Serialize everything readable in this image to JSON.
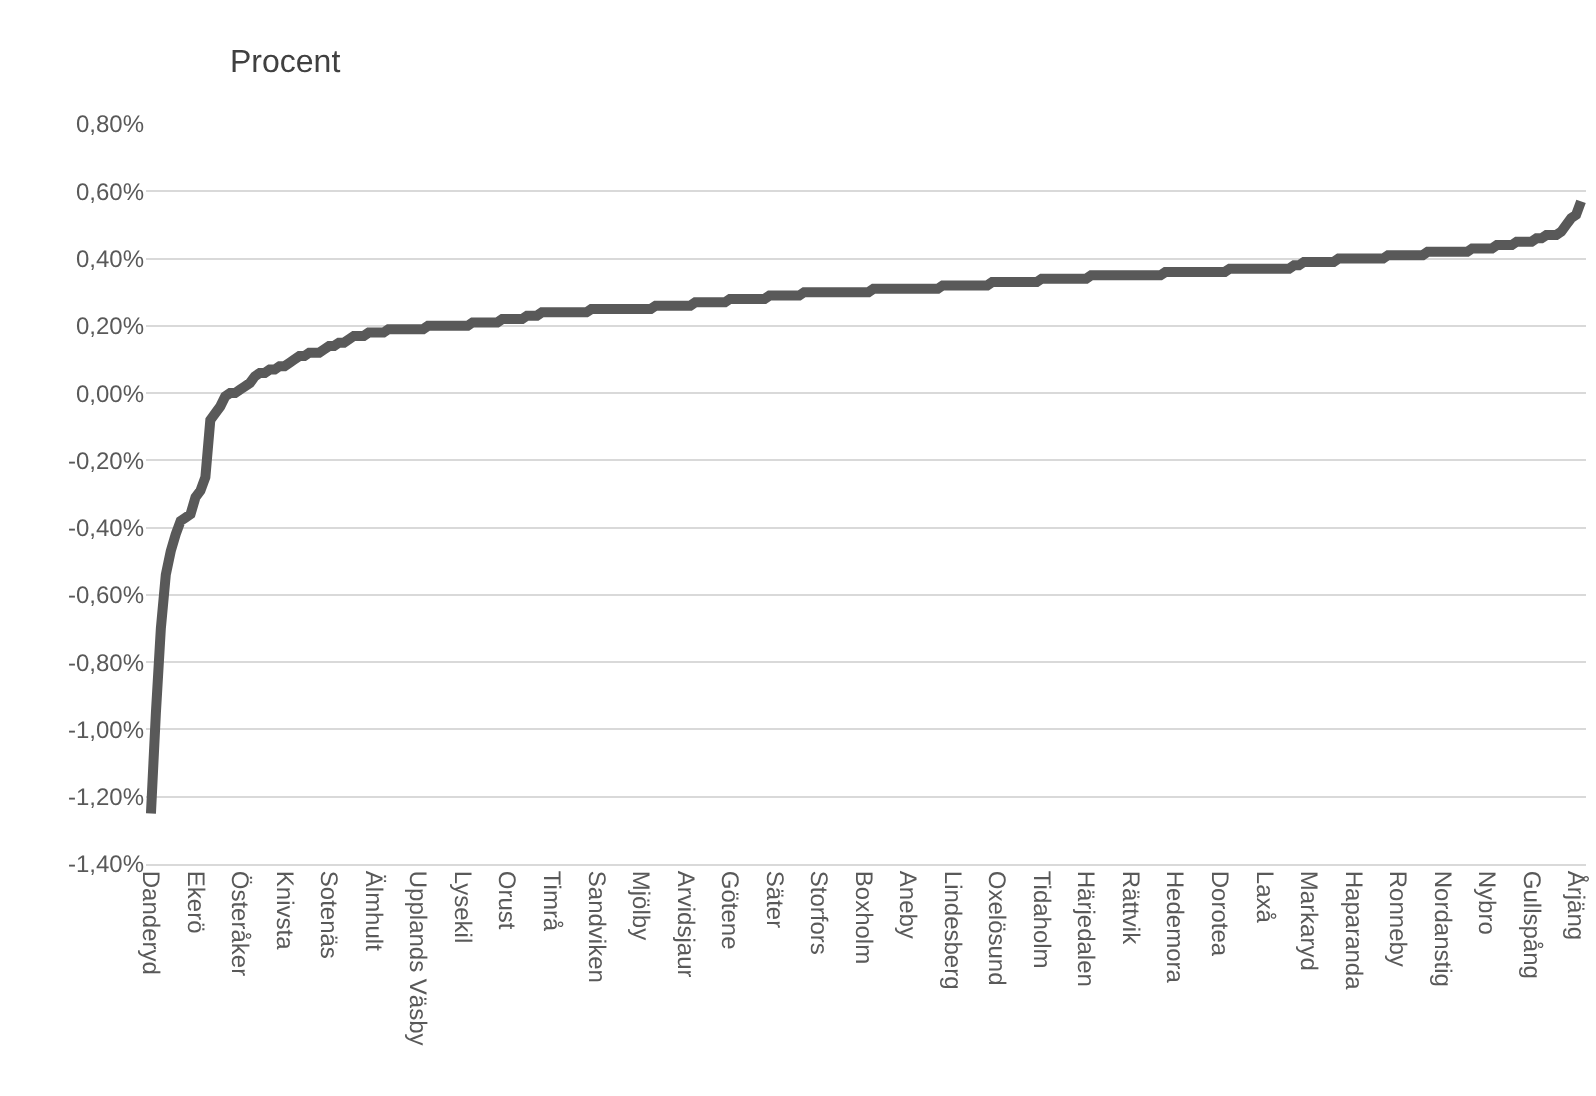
{
  "chart_data": {
    "type": "line",
    "ylabel": "Procent",
    "categories": [
      "Danderyd",
      null,
      null,
      null,
      null,
      null,
      null,
      null,
      null,
      "Ekerö",
      null,
      null,
      null,
      null,
      null,
      null,
      null,
      null,
      "Österåker",
      null,
      null,
      null,
      null,
      null,
      null,
      null,
      null,
      "Knivsta",
      null,
      null,
      null,
      null,
      null,
      null,
      null,
      null,
      "Sotenäs",
      null,
      null,
      null,
      null,
      null,
      null,
      null,
      null,
      "Älmhult",
      null,
      null,
      null,
      null,
      null,
      null,
      null,
      null,
      "Upplands Väsby",
      null,
      null,
      null,
      null,
      null,
      null,
      null,
      null,
      "Lysekil",
      null,
      null,
      null,
      null,
      null,
      null,
      null,
      null,
      "Orust",
      null,
      null,
      null,
      null,
      null,
      null,
      null,
      null,
      "Timrå",
      null,
      null,
      null,
      null,
      null,
      null,
      null,
      null,
      "Sandviken",
      null,
      null,
      null,
      null,
      null,
      null,
      null,
      null,
      "Mjölby",
      null,
      null,
      null,
      null,
      null,
      null,
      null,
      null,
      "Arvidsjaur",
      null,
      null,
      null,
      null,
      null,
      null,
      null,
      null,
      "Götene",
      null,
      null,
      null,
      null,
      null,
      null,
      null,
      null,
      "Säter",
      null,
      null,
      null,
      null,
      null,
      null,
      null,
      null,
      "Storfors",
      null,
      null,
      null,
      null,
      null,
      null,
      null,
      null,
      "Boxholm",
      null,
      null,
      null,
      null,
      null,
      null,
      null,
      null,
      "Aneby",
      null,
      null,
      null,
      null,
      null,
      null,
      null,
      null,
      "Lindesberg",
      null,
      null,
      null,
      null,
      null,
      null,
      null,
      null,
      "Oxelösund",
      null,
      null,
      null,
      null,
      null,
      null,
      null,
      null,
      "Tidaholm",
      null,
      null,
      null,
      null,
      null,
      null,
      null,
      null,
      "Härjedalen",
      null,
      null,
      null,
      null,
      null,
      null,
      null,
      null,
      "Rättvik",
      null,
      null,
      null,
      null,
      null,
      null,
      null,
      null,
      "Hedemora",
      null,
      null,
      null,
      null,
      null,
      null,
      null,
      null,
      "Dorotea",
      null,
      null,
      null,
      null,
      null,
      null,
      null,
      null,
      "Laxå",
      null,
      null,
      null,
      null,
      null,
      null,
      null,
      null,
      "Markaryd",
      null,
      null,
      null,
      null,
      null,
      null,
      null,
      null,
      "Haparanda",
      null,
      null,
      null,
      null,
      null,
      null,
      null,
      null,
      "Ronneby",
      null,
      null,
      null,
      null,
      null,
      null,
      null,
      null,
      "Nordanstig",
      null,
      null,
      null,
      null,
      null,
      null,
      null,
      null,
      "Nybro",
      null,
      null,
      null,
      null,
      null,
      null,
      null,
      null,
      "Gullspång",
      null,
      null,
      null,
      null,
      null,
      null,
      null,
      null,
      "Årjäng",
      null
    ],
    "series": [
      {
        "color": "#595959",
        "values": [
          -1.25,
          -0.95,
          -0.7,
          -0.54,
          -0.47,
          -0.42,
          -0.38,
          -0.37,
          -0.36,
          -0.31,
          -0.29,
          -0.25,
          -0.08,
          -0.06,
          -0.04,
          -0.01,
          0.0,
          0.0,
          0.01,
          0.02,
          0.03,
          0.05,
          0.06,
          0.06,
          0.07,
          0.07,
          0.08,
          0.08,
          0.09,
          0.1,
          0.11,
          0.11,
          0.12,
          0.12,
          0.12,
          0.13,
          0.14,
          0.14,
          0.15,
          0.15,
          0.16,
          0.17,
          0.17,
          0.17,
          0.18,
          0.18,
          0.18,
          0.18,
          0.19,
          0.19,
          0.19,
          0.19,
          0.19,
          0.19,
          0.19,
          0.19,
          0.2,
          0.2,
          0.2,
          0.2,
          0.2,
          0.2,
          0.2,
          0.2,
          0.2,
          0.21,
          0.21,
          0.21,
          0.21,
          0.21,
          0.21,
          0.22,
          0.22,
          0.22,
          0.22,
          0.22,
          0.23,
          0.23,
          0.23,
          0.24,
          0.24,
          0.24,
          0.24,
          0.24,
          0.24,
          0.24,
          0.24,
          0.24,
          0.24,
          0.25,
          0.25,
          0.25,
          0.25,
          0.25,
          0.25,
          0.25,
          0.25,
          0.25,
          0.25,
          0.25,
          0.25,
          0.25,
          0.26,
          0.26,
          0.26,
          0.26,
          0.26,
          0.26,
          0.26,
          0.26,
          0.27,
          0.27,
          0.27,
          0.27,
          0.27,
          0.27,
          0.27,
          0.28,
          0.28,
          0.28,
          0.28,
          0.28,
          0.28,
          0.28,
          0.28,
          0.29,
          0.29,
          0.29,
          0.29,
          0.29,
          0.29,
          0.29,
          0.3,
          0.3,
          0.3,
          0.3,
          0.3,
          0.3,
          0.3,
          0.3,
          0.3,
          0.3,
          0.3,
          0.3,
          0.3,
          0.3,
          0.31,
          0.31,
          0.31,
          0.31,
          0.31,
          0.31,
          0.31,
          0.31,
          0.31,
          0.31,
          0.31,
          0.31,
          0.31,
          0.31,
          0.32,
          0.32,
          0.32,
          0.32,
          0.32,
          0.32,
          0.32,
          0.32,
          0.32,
          0.32,
          0.33,
          0.33,
          0.33,
          0.33,
          0.33,
          0.33,
          0.33,
          0.33,
          0.33,
          0.33,
          0.34,
          0.34,
          0.34,
          0.34,
          0.34,
          0.34,
          0.34,
          0.34,
          0.34,
          0.34,
          0.35,
          0.35,
          0.35,
          0.35,
          0.35,
          0.35,
          0.35,
          0.35,
          0.35,
          0.35,
          0.35,
          0.35,
          0.35,
          0.35,
          0.35,
          0.36,
          0.36,
          0.36,
          0.36,
          0.36,
          0.36,
          0.36,
          0.36,
          0.36,
          0.36,
          0.36,
          0.36,
          0.36,
          0.37,
          0.37,
          0.37,
          0.37,
          0.37,
          0.37,
          0.37,
          0.37,
          0.37,
          0.37,
          0.37,
          0.37,
          0.37,
          0.38,
          0.38,
          0.39,
          0.39,
          0.39,
          0.39,
          0.39,
          0.39,
          0.39,
          0.4,
          0.4,
          0.4,
          0.4,
          0.4,
          0.4,
          0.4,
          0.4,
          0.4,
          0.4,
          0.41,
          0.41,
          0.41,
          0.41,
          0.41,
          0.41,
          0.41,
          0.41,
          0.42,
          0.42,
          0.42,
          0.42,
          0.42,
          0.42,
          0.42,
          0.42,
          0.42,
          0.43,
          0.43,
          0.43,
          0.43,
          0.43,
          0.44,
          0.44,
          0.44,
          0.44,
          0.45,
          0.45,
          0.45,
          0.45,
          0.46,
          0.46,
          0.47,
          0.47,
          0.47,
          0.48,
          0.5,
          0.52,
          0.53,
          0.57
        ]
      }
    ],
    "ylim": [
      -1.4,
      0.8
    ],
    "yticks": [
      {
        "value": -1.4,
        "label": "-1,40%"
      },
      {
        "value": -1.2,
        "label": "-1,20%"
      },
      {
        "value": -1.0,
        "label": "-1,00%"
      },
      {
        "value": -0.8,
        "label": "-0,80%"
      },
      {
        "value": -0.6,
        "label": "-0,60%"
      },
      {
        "value": -0.4,
        "label": "-0,40%"
      },
      {
        "value": -0.2,
        "label": "-0,20%"
      },
      {
        "value": 0,
        "label": "0,00%"
      },
      {
        "value": 0.2,
        "label": "0,20%"
      },
      {
        "value": 0.4,
        "label": "0,40%"
      },
      {
        "value": 0.6,
        "label": "0,60%"
      },
      {
        "value": 0.8,
        "label": "0,80%"
      }
    ],
    "grid": "y",
    "marker": "none",
    "line_style": "solid"
  }
}
